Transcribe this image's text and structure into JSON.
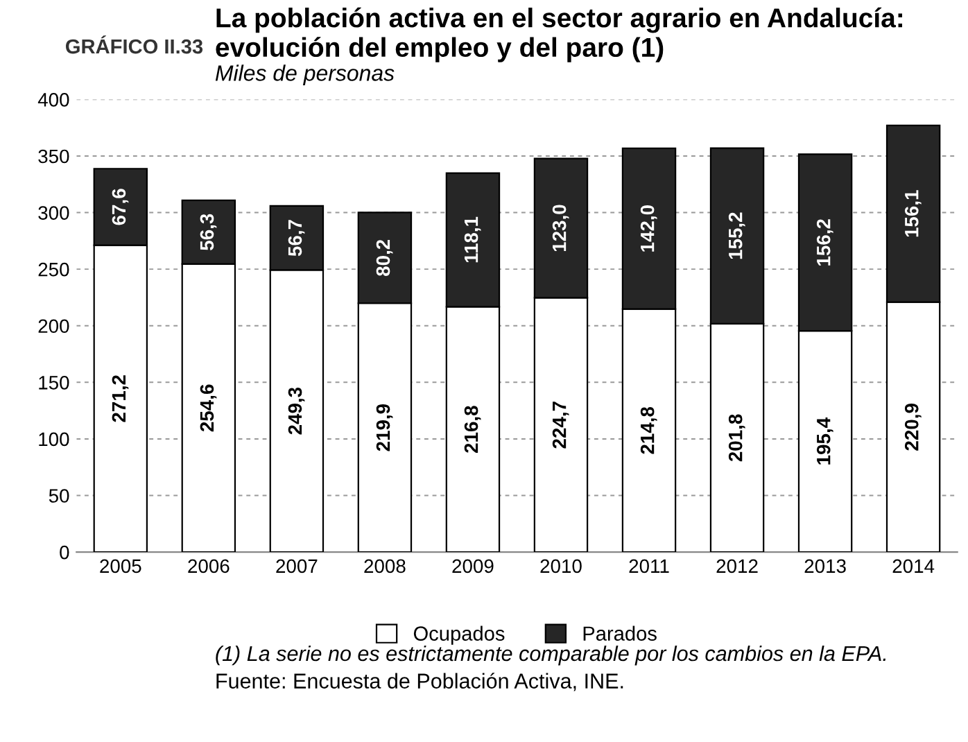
{
  "chart_data": {
    "type": "bar",
    "stacked": true,
    "title": "La población activa en el sector agrario en Andalucía: evolución del empleo y del paro (1)",
    "subtitle": "Miles de personas",
    "categories": [
      "2005",
      "2006",
      "2007",
      "2008",
      "2009",
      "2010",
      "2011",
      "2012",
      "2013",
      "2014"
    ],
    "series": [
      {
        "name": "Ocupados",
        "color": "#ffffff",
        "values": [
          271.2,
          254.6,
          249.3,
          219.9,
          216.8,
          224.7,
          214.8,
          201.8,
          195.4,
          220.9
        ],
        "value_labels": [
          "271,2",
          "254,6",
          "249,3",
          "219,9",
          "216,8",
          "224,7",
          "214,8",
          "201,8",
          "195,4",
          "220,9"
        ]
      },
      {
        "name": "Parados",
        "color": "#262626",
        "values": [
          67.6,
          56.3,
          56.7,
          80.2,
          118.1,
          123.0,
          142.0,
          155.2,
          156.2,
          156.1
        ],
        "value_labels": [
          "67,6",
          "56,3",
          "56,7",
          "80,2",
          "118,1",
          "123,0",
          "142,0",
          "155,2",
          "156,2",
          "156,1"
        ]
      }
    ],
    "ylim": [
      0,
      400
    ],
    "yticks": [
      0,
      50,
      100,
      150,
      200,
      250,
      300,
      350,
      400
    ],
    "grid": "y",
    "legend": "bottom",
    "annotations": [
      "GRÁFICO II.33",
      "(1) La serie no es estrictamente comparable por los cambios en la EPA.",
      "Fuente: Encuesta de Población Activa, INE."
    ]
  }
}
